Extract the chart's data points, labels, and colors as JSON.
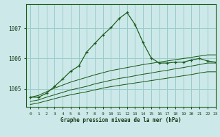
{
  "title": "Graphe pression niveau de la mer (hPa)",
  "background_color": "#cce8e8",
  "grid_color": "#99cccc",
  "line_color": "#1a5c1a",
  "xlim": [
    -0.5,
    23
  ],
  "ylim": [
    1004.4,
    1007.8
  ],
  "yticks": [
    1005,
    1006,
    1007
  ],
  "hours": [
    0,
    1,
    2,
    3,
    4,
    5,
    6,
    7,
    8,
    9,
    10,
    11,
    12,
    13,
    14,
    15,
    16,
    17,
    18,
    19,
    20,
    21,
    22,
    23
  ],
  "series1": [
    1004.72,
    1004.72,
    1004.85,
    1005.08,
    1005.32,
    1005.58,
    1005.75,
    1006.22,
    1006.5,
    1006.78,
    1007.02,
    1007.32,
    1007.52,
    1007.12,
    1006.52,
    1006.02,
    1005.85,
    1005.85,
    1005.88,
    1005.88,
    1005.95,
    1006.0,
    1005.92,
    1005.88
  ],
  "series2": [
    1004.72,
    1004.78,
    1004.9,
    1005.02,
    1005.12,
    1005.22,
    1005.3,
    1005.38,
    1005.46,
    1005.53,
    1005.6,
    1005.65,
    1005.7,
    1005.75,
    1005.8,
    1005.84,
    1005.88,
    1005.92,
    1005.96,
    1006.0,
    1006.04,
    1006.08,
    1006.12,
    1006.12
  ],
  "series3": [
    1004.58,
    1004.63,
    1004.72,
    1004.8,
    1004.88,
    1004.96,
    1005.02,
    1005.08,
    1005.16,
    1005.22,
    1005.28,
    1005.34,
    1005.38,
    1005.43,
    1005.48,
    1005.52,
    1005.57,
    1005.61,
    1005.66,
    1005.7,
    1005.75,
    1005.8,
    1005.85,
    1005.85
  ],
  "series4": [
    1004.48,
    1004.53,
    1004.6,
    1004.67,
    1004.74,
    1004.8,
    1004.85,
    1004.9,
    1004.96,
    1005.02,
    1005.07,
    1005.11,
    1005.15,
    1005.19,
    1005.23,
    1005.27,
    1005.31,
    1005.35,
    1005.39,
    1005.43,
    1005.47,
    1005.52,
    1005.56,
    1005.56
  ]
}
